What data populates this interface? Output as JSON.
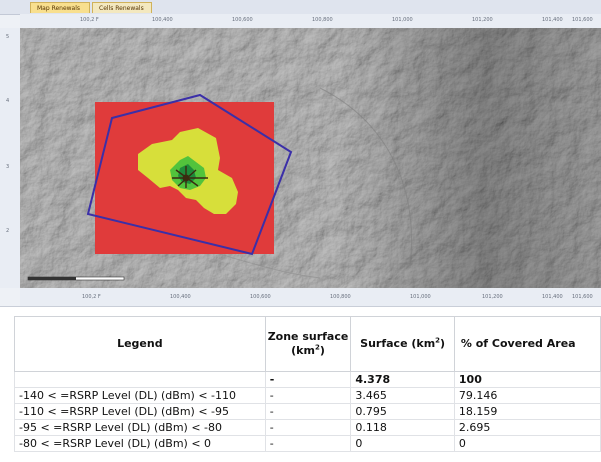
{
  "tabs": [
    {
      "label": "Map Renewals"
    },
    {
      "label": "Cells Renewals"
    }
  ],
  "ruler": {
    "top_ticks": [
      "100,2 F",
      "100,400",
      "100,600",
      "100,800",
      "101,000",
      "101,200",
      "101,400",
      "101,600"
    ],
    "bottom_ticks": [
      "100,2 F",
      "100,400",
      "100,600",
      "100,800",
      "101,000",
      "101,200",
      "101,400",
      "101,600"
    ],
    "left_ticks": [
      "5",
      "4",
      "3",
      "2"
    ]
  },
  "map": {
    "colors": {
      "rsrp_bin_1": "#e03b3b",
      "rsrp_bin_2": "#d7df3a",
      "rsrp_bin_3": "#52c33c",
      "rsrp_bin_4": "#1e8a3a",
      "zone_polygon": "#3b2fa8",
      "site_marker": "#3a2a10"
    },
    "icons": [
      "site-antenna-icon",
      "scale-bar-icon"
    ]
  },
  "table": {
    "headers": {
      "legend": "Legend",
      "zone_surface": "Zone surface",
      "zone_surface_unit": "(km",
      "surface": "Surface (km",
      "covered": "% of Covered Area",
      "sup": "2",
      "close_paren": ")"
    },
    "rows": [
      {
        "legend": "",
        "zone": "-",
        "surface": "4.378",
        "percent": "100",
        "total": true
      },
      {
        "legend": "-140 < =RSRP Level (DL) (dBm) < -110",
        "zone": "-",
        "surface": "3.465",
        "percent": "79.146"
      },
      {
        "legend": "-110 < =RSRP Level (DL) (dBm) < -95",
        "zone": "-",
        "surface": "0.795",
        "percent": "18.159"
      },
      {
        "legend": "-95 < =RSRP Level (DL) (dBm) < -80",
        "zone": "-",
        "surface": "0.118",
        "percent": "2.695"
      },
      {
        "legend": "-80 < =RSRP Level (DL) (dBm) < 0",
        "zone": "-",
        "surface": "0",
        "percent": "0"
      }
    ]
  }
}
